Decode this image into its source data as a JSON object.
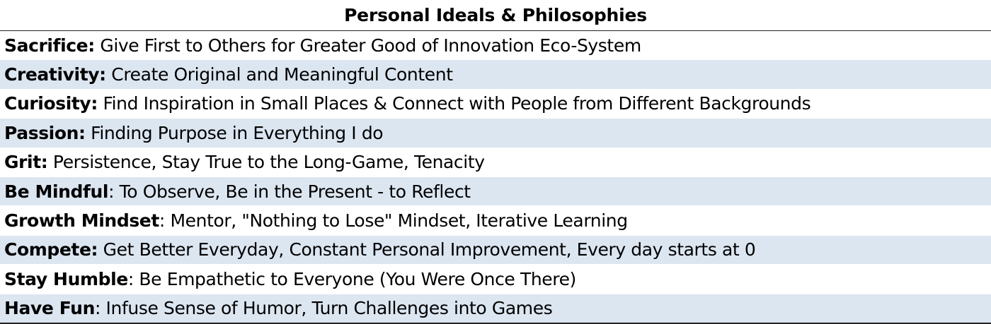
{
  "table": {
    "title": "Personal Ideals & Philosophies",
    "rows": [
      {
        "label": "Sacrifice:",
        "text": " Give First to Others for Greater Good of Innovation Eco-System"
      },
      {
        "label": "Creativity:",
        "text": " Create Original and Meaningful Content"
      },
      {
        "label": "Curiosity:",
        "text": " Find Inspiration in Small Places & Connect with People from Different Backgrounds"
      },
      {
        "label": "Passion:",
        "text": " Finding Purpose in Everything I do"
      },
      {
        "label": "Grit:",
        "text": " Persistence, Stay True to the Long-Game, Tenacity"
      },
      {
        "label": "Be Mindful",
        "text": ": To Observe, Be in the Present - to Reflect"
      },
      {
        "label": "Growth Mindset",
        "text": ": Mentor, \"Nothing to Lose\" Mindset, Iterative Learning"
      },
      {
        "label": "Compete:",
        "text": " Get Better Everyday, Constant Personal Improvement, Every day starts at 0"
      },
      {
        "label": "Stay Humble",
        "text": ": Be Empathetic to Everyone (You Were Once There)"
      },
      {
        "label": "Have Fun",
        "text": ": Infuse Sense of Humor, Turn Challenges into Games"
      }
    ]
  },
  "colors": {
    "band": "#dce6f1",
    "rule": "#222222"
  }
}
